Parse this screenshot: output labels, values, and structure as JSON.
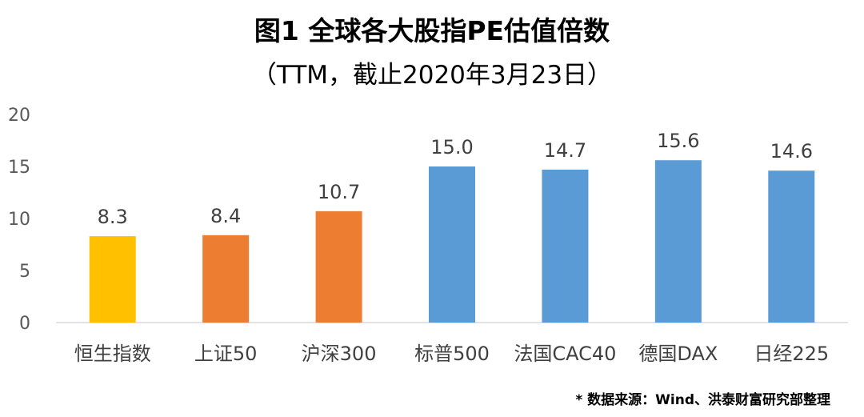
{
  "colors": {
    "yellow": "#FFC000",
    "orange": "#ED7D31",
    "blue": "#5B9BD5",
    "axis": "#D9D9D9"
  },
  "chart_data": {
    "type": "bar",
    "title": "图1  全球各大股指PE估值倍数",
    "subtitle": "（TTM，截止2020年3月23日）",
    "categories": [
      "恒生指数",
      "上证50",
      "沪深300",
      "标普500",
      "法国CAC40",
      "德国DAX",
      "日经225"
    ],
    "values": [
      8.3,
      8.4,
      10.7,
      15.0,
      14.7,
      15.6,
      14.6
    ],
    "data_labels": [
      "8.3",
      "8.4",
      "10.7",
      "15.0",
      "14.7",
      "15.6",
      "14.6"
    ],
    "bar_colors": [
      "#FFC000",
      "#ED7D31",
      "#ED7D31",
      "#5B9BD5",
      "#5B9BD5",
      "#5B9BD5",
      "#5B9BD5"
    ],
    "yticks": [
      "0",
      "5",
      "10",
      "15",
      "20"
    ],
    "ylim": [
      0,
      20
    ],
    "grid": false,
    "legend": "none",
    "source": "* 数据来源：Wind、洪泰财富研究部整理"
  }
}
